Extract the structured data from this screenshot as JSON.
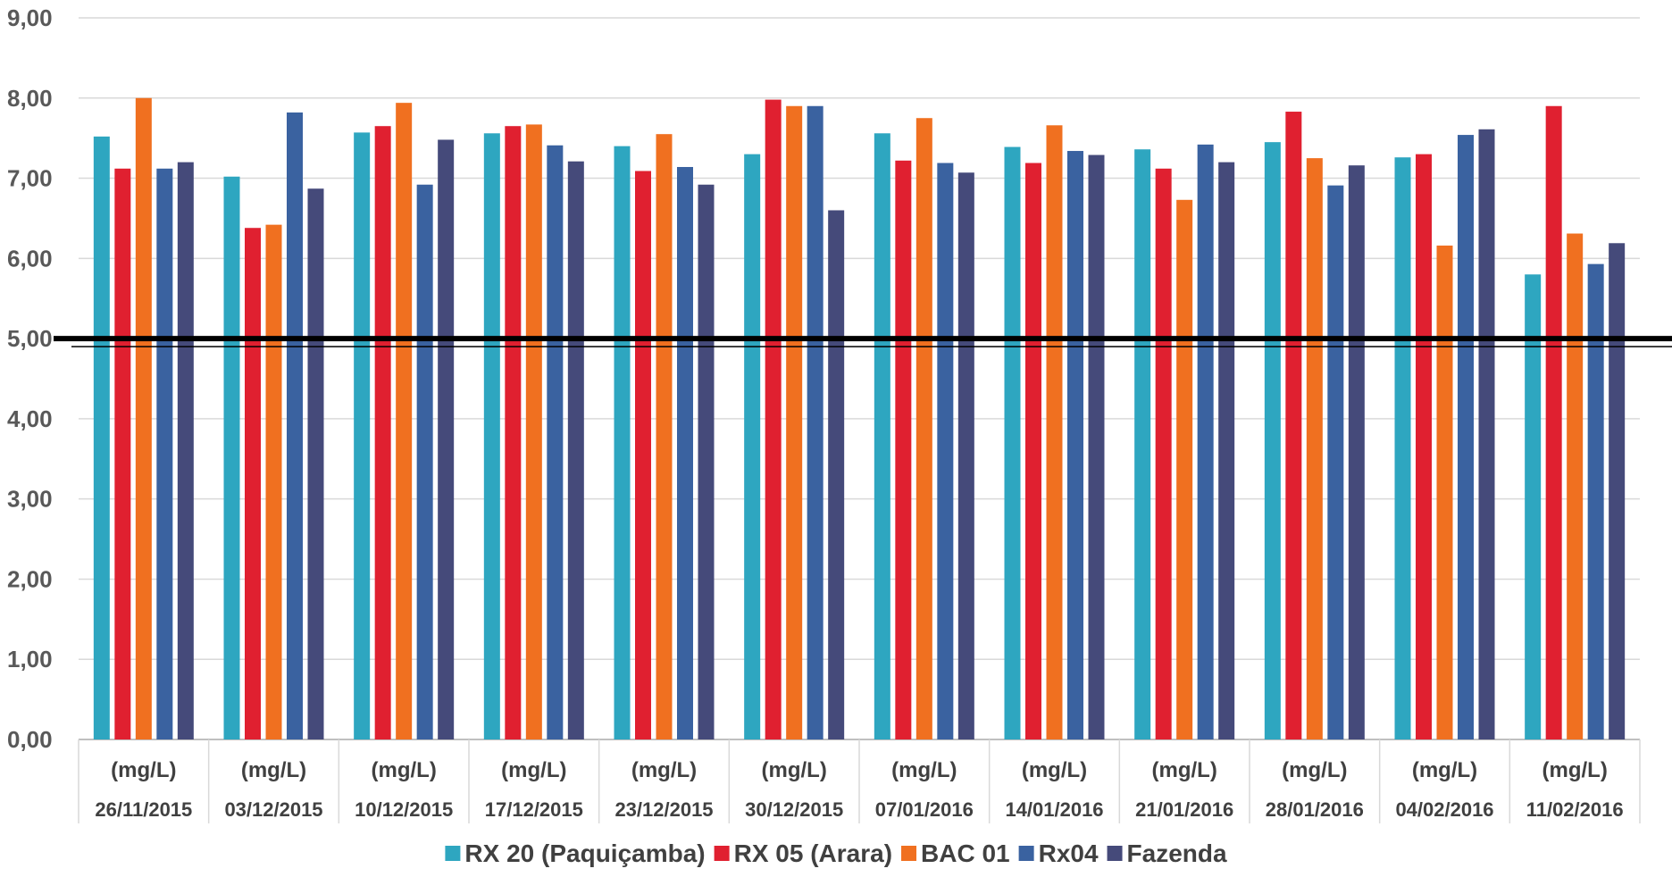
{
  "chart_data": {
    "type": "bar",
    "unit_label": "(mg/L)",
    "categories": [
      "26/11/2015",
      "03/12/2015",
      "10/12/2015",
      "17/12/2015",
      "23/12/2015",
      "30/12/2015",
      "07/01/2016",
      "14/01/2016",
      "21/01/2016",
      "28/01/2016",
      "04/02/2016",
      "11/02/2016"
    ],
    "series": [
      {
        "name": "RX 20 (Paquiçamba)",
        "color": "#2ea6c0",
        "values": [
          7.52,
          7.02,
          7.57,
          7.56,
          7.4,
          7.3,
          7.56,
          7.39,
          7.36,
          7.45,
          7.26,
          5.8
        ]
      },
      {
        "name": "RX 05 (Arara)",
        "color": "#e02030",
        "values": [
          7.12,
          6.38,
          7.65,
          7.65,
          7.09,
          7.98,
          7.22,
          7.19,
          7.12,
          7.83,
          7.3,
          7.9
        ]
      },
      {
        "name": "BAC 01",
        "color": "#f07020",
        "values": [
          8.0,
          6.42,
          7.94,
          7.67,
          7.55,
          7.9,
          7.75,
          7.66,
          6.73,
          7.25,
          6.16,
          6.31
        ]
      },
      {
        "name": "Rx04",
        "color": "#3a62a0",
        "values": [
          7.12,
          7.82,
          6.92,
          7.41,
          7.14,
          7.9,
          7.19,
          7.34,
          7.42,
          6.91,
          7.54,
          5.93
        ]
      },
      {
        "name": "Fazenda",
        "color": "#454a7a",
        "values": [
          7.2,
          6.87,
          7.48,
          7.21,
          6.92,
          6.6,
          7.07,
          7.29,
          7.2,
          7.16,
          7.61,
          6.19
        ]
      }
    ],
    "yticks": [
      "0,00",
      "1,00",
      "2,00",
      "3,00",
      "4,00",
      "5,00",
      "6,00",
      "7,00",
      "8,00",
      "9,00"
    ],
    "ylim": [
      0,
      9
    ],
    "reference_line": 5.0,
    "grid": true,
    "legend_position": "bottom"
  }
}
